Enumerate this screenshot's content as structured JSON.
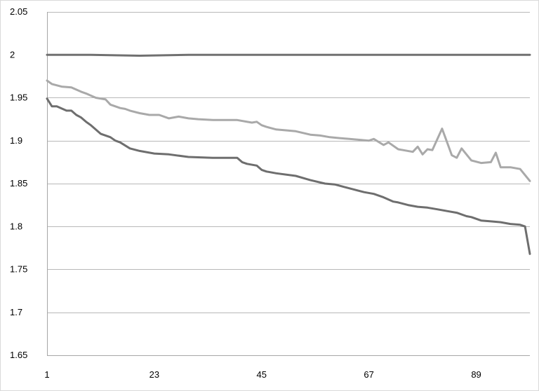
{
  "chart_data": {
    "type": "line",
    "title": "",
    "xlabel": "",
    "ylabel": "",
    "ylim": [
      1.65,
      2.05
    ],
    "xlim": [
      1,
      100
    ],
    "grid": true,
    "legend": "none",
    "y_ticks": [
      2.05,
      2,
      1.95,
      1.9,
      1.85,
      1.8,
      1.75,
      1.7,
      1.65
    ],
    "y_tick_labels": [
      "2.05",
      "2",
      "1.95",
      "1.9",
      "1.85",
      "1.8",
      "1.75",
      "1.7",
      "1.65"
    ],
    "x_ticks": [
      1,
      23,
      45,
      67,
      89
    ],
    "x_tick_labels": [
      "1",
      "23",
      "45",
      "67",
      "89"
    ],
    "series": [
      {
        "color": "#707070",
        "x": [
          1,
          10,
          20,
          30,
          40,
          50,
          60,
          70,
          80,
          90,
          100
        ],
        "y": [
          2.0,
          2.0,
          1.999,
          2.0,
          2.0,
          2.0,
          2.0,
          2.0,
          2.0,
          2.0,
          2.0
        ]
      },
      {
        "color": "#a9a9a9",
        "x": [
          1,
          2,
          4,
          6,
          8,
          9,
          11,
          13,
          14,
          16,
          17,
          18,
          20,
          22,
          24,
          26,
          28,
          30,
          32,
          35,
          40,
          43,
          44,
          45,
          46,
          48,
          52,
          55,
          57,
          59,
          61,
          63,
          65,
          67,
          68,
          70,
          71,
          73,
          74,
          76,
          77,
          78,
          79,
          80,
          82,
          84,
          85,
          86,
          88,
          90,
          92,
          93,
          94,
          96,
          98,
          100
        ],
        "y": [
          1.97,
          1.966,
          1.963,
          1.962,
          1.957,
          1.955,
          1.95,
          1.948,
          1.942,
          1.938,
          1.937,
          1.935,
          1.932,
          1.93,
          1.93,
          1.926,
          1.928,
          1.926,
          1.925,
          1.924,
          1.924,
          1.921,
          1.922,
          1.918,
          1.916,
          1.913,
          1.911,
          1.907,
          1.906,
          1.904,
          1.903,
          1.902,
          1.901,
          1.9,
          1.902,
          1.895,
          1.898,
          1.89,
          1.889,
          1.887,
          1.893,
          1.884,
          1.89,
          1.889,
          1.914,
          1.883,
          1.88,
          1.891,
          1.877,
          1.874,
          1.875,
          1.886,
          1.869,
          1.869,
          1.867,
          1.853
        ]
      },
      {
        "color": "#6e6e6e",
        "x": [
          1,
          2,
          3,
          5,
          6,
          7,
          8,
          9,
          10,
          12,
          14,
          15,
          16,
          18,
          20,
          23,
          26,
          30,
          35,
          40,
          41,
          42,
          44,
          45,
          46,
          48,
          52,
          55,
          58,
          60,
          62,
          64,
          66,
          68,
          70,
          72,
          73,
          75,
          77,
          79,
          81,
          83,
          85,
          87,
          88,
          90,
          92,
          94,
          96,
          98,
          99,
          100
        ],
        "y": [
          1.949,
          1.94,
          1.94,
          1.935,
          1.935,
          1.93,
          1.927,
          1.922,
          1.918,
          1.908,
          1.904,
          1.9,
          1.898,
          1.891,
          1.888,
          1.885,
          1.884,
          1.881,
          1.88,
          1.88,
          1.875,
          1.873,
          1.871,
          1.866,
          1.864,
          1.862,
          1.859,
          1.854,
          1.85,
          1.849,
          1.846,
          1.843,
          1.84,
          1.838,
          1.834,
          1.829,
          1.828,
          1.825,
          1.823,
          1.822,
          1.82,
          1.818,
          1.816,
          1.812,
          1.811,
          1.807,
          1.806,
          1.805,
          1.803,
          1.802,
          1.8,
          1.768
        ]
      }
    ]
  }
}
